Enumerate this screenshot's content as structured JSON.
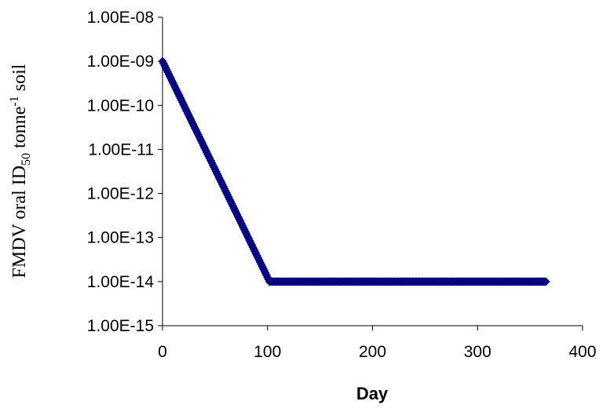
{
  "chart_data": {
    "type": "scatter",
    "title": "",
    "xlabel": "Day",
    "ylabel": {
      "base": "FMDV oral ID",
      "subscript": "50",
      "mid": " tonne",
      "superscript": "-1",
      "end": " soil"
    },
    "x_ticks": [
      "0",
      "100",
      "200",
      "300",
      "400"
    ],
    "y_ticks": [
      "1.00E-15",
      "1.00E-14",
      "1.00E-13",
      "1.00E-12",
      "1.00E-11",
      "1.00E-10",
      "1.00E-09",
      "1.00E-08"
    ],
    "xlim": [
      0,
      400
    ],
    "ylim": [
      1e-15,
      1e-08
    ],
    "y_scale": "log",
    "grid": false,
    "legend": "none",
    "marker_color": "#000080",
    "marker_shape": "diamond",
    "series": [
      {
        "segments": [
          {
            "x_start": 0,
            "x_end": 102,
            "x_step": 1,
            "y_start": 1e-09,
            "y_end": 1e-14
          },
          {
            "x_start": 102,
            "x_end": 365,
            "x_step": 1,
            "y_start": 1e-14,
            "y_end": 1e-14
          }
        ]
      }
    ]
  }
}
